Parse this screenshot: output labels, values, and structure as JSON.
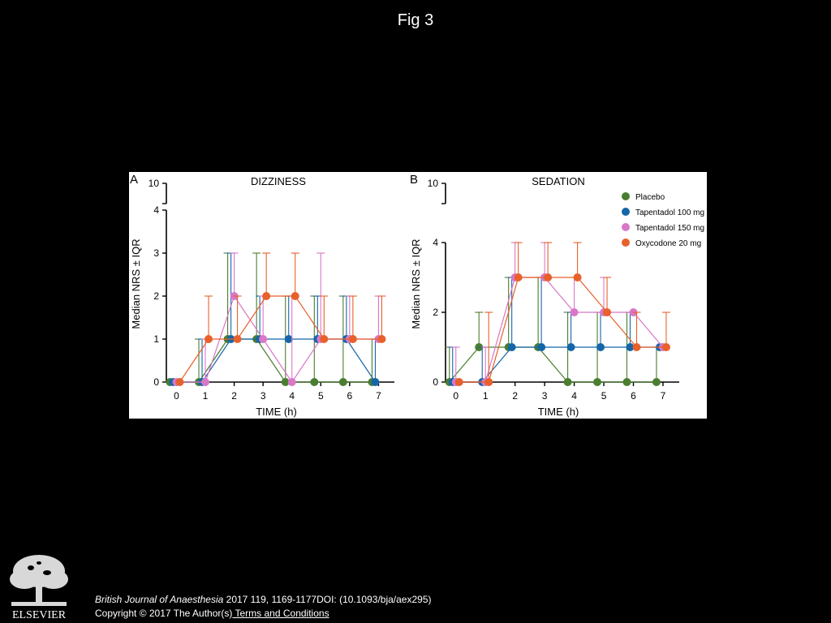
{
  "page": {
    "title": "Fig 3",
    "background": "#000000"
  },
  "citation": {
    "journal": "British Journal of Anaesthesia",
    "details": " 2017 119, 1169-1177DOI: (10.1093/bja/aex295)",
    "copyright": "Copyright © 2017 The Author(s)",
    "link_label": " Terms and Conditions"
  },
  "logo": {
    "label": "ELSEVIER",
    "icon": "elsevier-tree-icon"
  },
  "colors": {
    "Placebo": "#4a7d2f",
    "Tapentadol 100 mg": "#1566a8",
    "Tapentadol 150 mg": "#d977c8",
    "Oxycodone 20 mg": "#e8602a"
  },
  "chart_data": [
    {
      "type": "line",
      "panel_letter": "A",
      "title": "DIZZINESS",
      "xlabel": "TIME (h)",
      "ylabel": "Median NRS ± IQR",
      "x": [
        0,
        1,
        2,
        3,
        4,
        5,
        6,
        7
      ],
      "xlim": [
        -0.35,
        7.55
      ],
      "ylim": [
        0,
        4
      ],
      "yticks": [
        0,
        1,
        2,
        3,
        4
      ],
      "broken_axis_top_tick": 10,
      "grid": false,
      "legend": "none",
      "series": [
        {
          "name": "Placebo",
          "values": [
            0,
            0,
            1,
            1,
            0,
            0,
            0,
            0
          ],
          "q3": [
            0,
            1,
            3,
            3,
            2,
            2,
            2,
            1
          ]
        },
        {
          "name": "Tapentadol 100 mg",
          "values": [
            0,
            0,
            1,
            1,
            1,
            1,
            1,
            0
          ],
          "q3": [
            0,
            1,
            3,
            2,
            2,
            2,
            2,
            1
          ]
        },
        {
          "name": "Tapentadol 150 mg",
          "values": [
            0,
            0,
            2,
            1,
            0,
            1,
            1,
            1
          ],
          "q3": [
            0,
            1,
            3,
            2,
            2,
            3,
            2,
            2
          ]
        },
        {
          "name": "Oxycodone 20 mg",
          "values": [
            0,
            1,
            1,
            2,
            2,
            1,
            1,
            1
          ],
          "q3": [
            0,
            2,
            2,
            3,
            3,
            2,
            2,
            2
          ]
        }
      ]
    },
    {
      "type": "line",
      "panel_letter": "B",
      "title": "SEDATION",
      "xlabel": "TIME (h)",
      "ylabel": "Median NRS ± IQR",
      "x": [
        0,
        1,
        2,
        3,
        4,
        5,
        6,
        7
      ],
      "xlim": [
        -0.35,
        7.55
      ],
      "ylim": [
        0,
        4
      ],
      "yticks": [
        0,
        2,
        4
      ],
      "broken_axis_top_tick": 10,
      "grid": false,
      "legend": "top-right",
      "series": [
        {
          "name": "Placebo",
          "values": [
            0,
            1,
            1,
            1,
            0,
            0,
            0,
            0
          ],
          "q3": [
            1,
            2,
            3,
            3,
            2,
            2,
            2,
            1
          ]
        },
        {
          "name": "Tapentadol 100 mg",
          "values": [
            0,
            0,
            1,
            1,
            1,
            1,
            1,
            1
          ],
          "q3": [
            1,
            1,
            3,
            3,
            2,
            2,
            2,
            1
          ]
        },
        {
          "name": "Tapentadol 150 mg",
          "values": [
            0,
            0,
            3,
            3,
            2,
            2,
            2,
            1
          ],
          "q3": [
            1,
            1,
            4,
            4,
            3,
            3,
            2,
            1
          ]
        },
        {
          "name": "Oxycodone 20 mg",
          "values": [
            0,
            0,
            3,
            3,
            3,
            2,
            1,
            1
          ],
          "q3": [
            0,
            2,
            4,
            4,
            4,
            3,
            2,
            2
          ]
        }
      ]
    }
  ]
}
